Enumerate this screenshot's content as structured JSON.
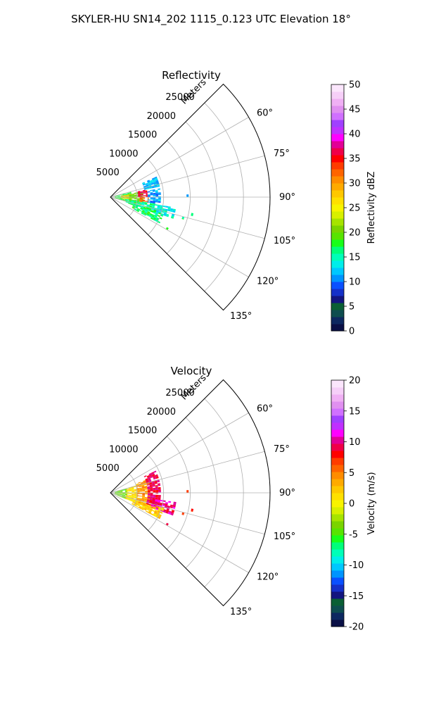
{
  "figure": {
    "title": "SKYLER-HU  SN14_202  1115_0.123 UTC Elevation 18°"
  },
  "chart_data": [
    {
      "type": "heatmap",
      "projection": "polar-sector",
      "title": "Reflectivity",
      "range_label": "Meters",
      "theta_range_deg": [
        45,
        135
      ],
      "r_max_m": 30000,
      "radial_ticks": [
        "5000",
        "10000",
        "15000",
        "20000",
        "25000"
      ],
      "radial_tick_values": [
        5000,
        10000,
        15000,
        20000,
        25000
      ],
      "angle_ticks": [
        "60°",
        "75°",
        "90°",
        "105°",
        "120°",
        "135°"
      ],
      "angle_tick_values": [
        60,
        75,
        90,
        105,
        120,
        135
      ],
      "grid": true,
      "colorbar": {
        "label": "Reflectivity dBZ",
        "range": [
          0,
          50
        ],
        "ticks": [
          "0",
          "5",
          "10",
          "15",
          "20",
          "25",
          "30",
          "35",
          "40",
          "45",
          "50"
        ],
        "tick_values": [
          0,
          5,
          10,
          15,
          20,
          25,
          30,
          35,
          40,
          45,
          50
        ],
        "colors": [
          "#0a1046",
          "#0d2860",
          "#0e4d4f",
          "#0a5f34",
          "#13157f",
          "#1530c8",
          "#0a50ff",
          "#0094ff",
          "#00c8ff",
          "#00eeea",
          "#00ffb8",
          "#00ff7a",
          "#18ff18",
          "#58e400",
          "#7ad400",
          "#a6e400",
          "#d8f000",
          "#f8f400",
          "#ffe000",
          "#ffc800",
          "#ffaa00",
          "#ff8c00",
          "#ff6400",
          "#ff3c00",
          "#ff0000",
          "#f00048",
          "#e20096",
          "#ff00ff",
          "#c030ff",
          "#a040ff",
          "#d070ff",
          "#e090f0",
          "#f0b0f4",
          "#f6cff8",
          "#fbe6fc"
        ]
      },
      "echo_cells": [
        {
          "r_range": [
            800,
            4000
          ],
          "az_range": [
            75,
            106
          ],
          "value": 18
        },
        {
          "r_range": [
            2000,
            4000
          ],
          "az_range": [
            82,
            96
          ],
          "value": 28
        },
        {
          "r_range": [
            3500,
            6200
          ],
          "az_range": [
            80,
            102
          ],
          "value": 20
        },
        {
          "r_range": [
            5200,
            7000
          ],
          "az_range": [
            78,
            90
          ],
          "value": 36
        },
        {
          "r_range": [
            5500,
            7200
          ],
          "az_range": [
            90,
            100
          ],
          "value": 32
        },
        {
          "r_range": [
            3000,
            8500
          ],
          "az_range": [
            98,
            110
          ],
          "value": 16
        },
        {
          "r_range": [
            6500,
            9500
          ],
          "az_range": [
            66,
            78
          ],
          "value": 12
        },
        {
          "r_range": [
            7000,
            9500
          ],
          "az_range": [
            80,
            98
          ],
          "value": 11
        },
        {
          "r_range": [
            8500,
            12500
          ],
          "az_range": [
            99,
            109
          ],
          "value": 14
        },
        {
          "r_range": [
            4500,
            10500
          ],
          "az_range": [
            106,
            118
          ],
          "value": 17
        },
        {
          "r_range": [
            14300,
            14700
          ],
          "az_range": [
            88,
            90
          ],
          "value": 12
        },
        {
          "r_range": [
            15500,
            15900
          ],
          "az_range": [
            101,
            103
          ],
          "value": 15
        },
        {
          "r_range": [
            14000,
            14400
          ],
          "az_range": [
            105,
            107
          ],
          "value": 16
        },
        {
          "r_range": [
            12000,
            12400
          ],
          "az_range": [
            118,
            120
          ],
          "value": 18
        }
      ]
    },
    {
      "type": "heatmap",
      "projection": "polar-sector",
      "title": "Velocity",
      "range_label": "Meters",
      "theta_range_deg": [
        45,
        135
      ],
      "r_max_m": 30000,
      "radial_ticks": [
        "5000",
        "10000",
        "15000",
        "20000",
        "25000"
      ],
      "radial_tick_values": [
        5000,
        10000,
        15000,
        20000,
        25000
      ],
      "angle_ticks": [
        "60°",
        "75°",
        "90°",
        "105°",
        "120°",
        "135°"
      ],
      "angle_tick_values": [
        60,
        75,
        90,
        105,
        120,
        135
      ],
      "grid": true,
      "colorbar": {
        "label": "Velocity (m/s)",
        "range": [
          -20,
          20
        ],
        "ticks": [
          "-20",
          "-15",
          "-10",
          "-5",
          "0",
          "5",
          "10",
          "15",
          "20"
        ],
        "tick_values": [
          -20,
          -15,
          -10,
          -5,
          0,
          5,
          10,
          15,
          20
        ],
        "colors": [
          "#0a1046",
          "#0d2860",
          "#0e4d4f",
          "#0a5f34",
          "#13157f",
          "#1530c8",
          "#0a50ff",
          "#0094ff",
          "#00c8ff",
          "#00eeea",
          "#00ffb8",
          "#00ff7a",
          "#18ff18",
          "#58e400",
          "#7ad400",
          "#a6e400",
          "#d8f000",
          "#f8f400",
          "#ffe000",
          "#ffc800",
          "#ffaa00",
          "#ff8c00",
          "#ff6400",
          "#ff3c00",
          "#ff0000",
          "#f00048",
          "#e20096",
          "#ff00ff",
          "#c030ff",
          "#a040ff",
          "#d070ff",
          "#e090f0",
          "#f0b0f4",
          "#f6cff8",
          "#fbe6fc"
        ]
      },
      "echo_cells": [
        {
          "r_range": [
            800,
            3200
          ],
          "az_range": [
            74,
            112
          ],
          "value": -4
        },
        {
          "r_range": [
            3000,
            5200
          ],
          "az_range": [
            74,
            112
          ],
          "value": 1
        },
        {
          "r_range": [
            5000,
            7500
          ],
          "az_range": [
            70,
            112
          ],
          "value": 4
        },
        {
          "r_range": [
            7000,
            9500
          ],
          "az_range": [
            64,
            108
          ],
          "value": 9
        },
        {
          "r_range": [
            8000,
            12500
          ],
          "az_range": [
            98,
            110
          ],
          "value": 10
        },
        {
          "r_range": [
            4500,
            10500
          ],
          "az_range": [
            106,
            118
          ],
          "value": 2
        },
        {
          "r_range": [
            14300,
            14700
          ],
          "az_range": [
            88,
            90
          ],
          "value": 8
        },
        {
          "r_range": [
            15500,
            15900
          ],
          "az_range": [
            101,
            103
          ],
          "value": 7
        },
        {
          "r_range": [
            14000,
            14400
          ],
          "az_range": [
            105,
            107
          ],
          "value": 8
        },
        {
          "r_range": [
            12000,
            12400
          ],
          "az_range": [
            118,
            120
          ],
          "value": 8
        }
      ]
    }
  ]
}
